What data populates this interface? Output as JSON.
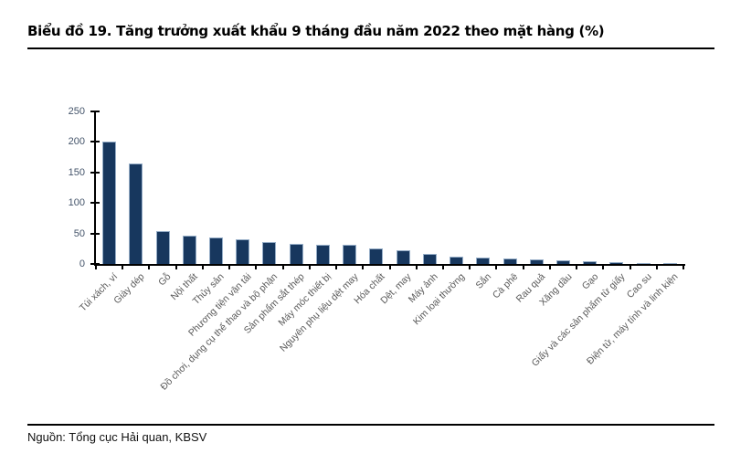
{
  "header": {
    "title": "Biểu đồ 19. Tăng trưởng xuất khẩu 9 tháng đầu năm 2022 theo mặt hàng (%)"
  },
  "footer": {
    "source": "Nguồn: Tổng cục Hải quan, KBSV"
  },
  "colors": {
    "bar_fill": "#17375E",
    "bar_border": "#95ADC7",
    "axis": "#000000",
    "y_tick_label": "#44546A",
    "x_tick_label": "#595959",
    "rule": "#000000"
  },
  "chart_data": {
    "type": "bar",
    "title": "Biểu đồ 19. Tăng trưởng xuất khẩu 9 tháng đầu năm 2022 theo mặt hàng (%)",
    "xlabel": "",
    "ylabel": "",
    "ylim": [
      0,
      250
    ],
    "yticks": [
      0,
      50,
      100,
      150,
      200,
      250
    ],
    "grid": false,
    "legend": false,
    "categories": [
      "Túi xách, ví",
      "Giày dép",
      "Gỗ",
      "Nội thất",
      "Thủy sản",
      "Phương tiện vận tải",
      "Đồ chơi, dụng cụ thể thao và bộ phận",
      "Sản phẩm sắt thép",
      "Máy móc thiết bị",
      "Nguyên phụ liệu dệt may",
      "Hóa chất",
      "Dệt, may",
      "Máy ảnh",
      "Kim loại thường",
      "Sắn",
      "Cà phê",
      "Rau quả",
      "Xăng dầu",
      "Gạo",
      "Giấy và các sản phẩm từ giấy",
      "Cao su",
      "Điện tử, máy tính và linh kiện"
    ],
    "values": [
      201,
      165,
      54,
      46,
      43,
      40,
      36,
      33,
      32,
      31,
      26,
      23,
      16,
      12,
      10,
      9,
      7,
      6,
      4.5,
      3.5,
      1.5,
      0.3
    ]
  }
}
